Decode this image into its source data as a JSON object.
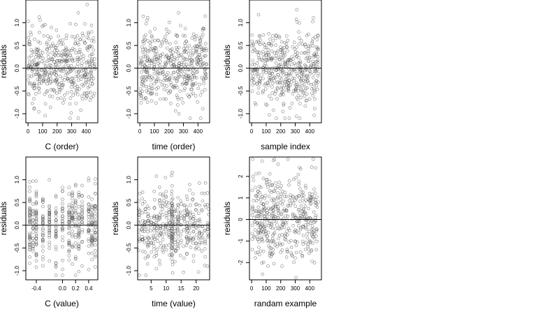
{
  "chart_data": [
    {
      "type": "scatter",
      "xlabel": "C (order)",
      "ylabel": "residuals",
      "xlim": [
        -15,
        480
      ],
      "ylim": [
        -1.2,
        1.5
      ],
      "xticks": [
        0,
        100,
        200,
        300,
        400
      ],
      "xtick_labels": [
        "0",
        "100",
        "200",
        "300",
        "400"
      ],
      "yticks": [
        -1.0,
        -0.5,
        0.0,
        0.5,
        1.0
      ],
      "ytick_labels": [
        "-1.0",
        "-0.5",
        "0.0",
        "0.5",
        "1.0"
      ],
      "hline": 0,
      "seed": 11,
      "n_points": 460,
      "x_distribution": "uniform",
      "x_range": [
        0,
        460
      ],
      "residual_sd": 0.42,
      "residual_clip": [
        -1.1,
        1.4
      ],
      "grid": false,
      "legend": "none"
    },
    {
      "type": "scatter",
      "xlabel": "time (order)",
      "ylabel": "residuals",
      "xlim": [
        -15,
        480
      ],
      "ylim": [
        -1.2,
        1.5
      ],
      "xticks": [
        0,
        100,
        200,
        300,
        400
      ],
      "xtick_labels": [
        "0",
        "100",
        "200",
        "300",
        "400"
      ],
      "yticks": [
        -1.0,
        -0.5,
        0.0,
        0.5,
        1.0
      ],
      "ytick_labels": [
        "-1.0",
        "-0.5",
        "0.0",
        "0.5",
        "1.0"
      ],
      "hline": 0,
      "seed": 23,
      "n_points": 460,
      "x_distribution": "uniform",
      "x_range": [
        0,
        460
      ],
      "residual_sd": 0.42,
      "residual_clip": [
        -1.1,
        1.4
      ],
      "grid": false,
      "legend": "none"
    },
    {
      "type": "scatter",
      "xlabel": "sample index",
      "ylabel": "residuals",
      "xlim": [
        -15,
        480
      ],
      "ylim": [
        -1.2,
        1.5
      ],
      "xticks": [
        0,
        100,
        200,
        300,
        400
      ],
      "xtick_labels": [
        "0",
        "100",
        "200",
        "300",
        "400"
      ],
      "yticks": [
        -1.0,
        -0.5,
        0.0,
        0.5,
        1.0
      ],
      "ytick_labels": [
        "-1.0",
        "-0.5",
        "0.0",
        "0.5",
        "1.0"
      ],
      "hline": 0,
      "seed": 37,
      "n_points": 460,
      "x_distribution": "uniform",
      "x_range": [
        0,
        460
      ],
      "residual_sd": 0.42,
      "residual_clip": [
        -1.1,
        1.4
      ],
      "grid": false,
      "legend": "none"
    },
    {
      "type": "scatter",
      "xlabel": "C (value)",
      "ylabel": "residuals",
      "xlim": [
        -0.56,
        0.54
      ],
      "ylim": [
        -1.2,
        1.5
      ],
      "xticks": [
        -0.4,
        0.0,
        0.2,
        0.4
      ],
      "xtick_labels": [
        "-0.4",
        "0.0",
        "0.2",
        "0.4"
      ],
      "yticks": [
        -1.0,
        -0.5,
        0.0,
        0.5,
        1.0
      ],
      "ytick_labels": [
        "-1.0",
        "-0.5",
        "0.0",
        "0.5",
        "1.0"
      ],
      "hline": 0,
      "seed": 53,
      "n_points": 460,
      "x_distribution": "discrete",
      "x_levels": [
        -0.5,
        -0.45,
        -0.4,
        -0.3,
        -0.2,
        -0.1,
        0.0,
        0.1,
        0.15,
        0.2,
        0.25,
        0.3,
        0.4,
        0.45,
        0.5
      ],
      "residual_sd": 0.42,
      "residual_clip": [
        -1.1,
        1.4
      ],
      "grid": false,
      "legend": "none"
    },
    {
      "type": "scatter",
      "xlabel": "time (value)",
      "ylabel": "residuals",
      "xlim": [
        0.5,
        24.5
      ],
      "ylim": [
        -1.2,
        1.5
      ],
      "xticks": [
        5,
        10,
        15,
        20
      ],
      "xtick_labels": [
        "5",
        "10",
        "15",
        "20"
      ],
      "yticks": [
        -1.0,
        -0.5,
        0.0,
        0.5,
        1.0
      ],
      "ytick_labels": [
        "-1.0",
        "-0.5",
        "0.0",
        "0.5",
        "1.0"
      ],
      "hline": 0,
      "seed": 71,
      "n_points": 460,
      "x_distribution": "discrete_jitter",
      "x_levels": [
        1,
        2,
        3,
        4,
        5,
        6,
        7,
        8,
        9,
        10,
        11,
        12,
        13,
        14,
        15,
        16,
        17,
        18,
        19,
        20,
        21,
        22,
        23,
        24
      ],
      "dense_level": 12,
      "residual_sd": 0.42,
      "residual_clip": [
        -1.1,
        1.4
      ],
      "grid": false,
      "legend": "none"
    },
    {
      "type": "scatter",
      "xlabel": "randam example",
      "ylabel": "residuals",
      "xlim": [
        -15,
        480
      ],
      "ylim": [
        -2.8,
        2.9
      ],
      "xticks": [
        0,
        100,
        200,
        300,
        400
      ],
      "xtick_labels": [
        "0",
        "100",
        "200",
        "300",
        "400"
      ],
      "yticks": [
        -2,
        -1,
        0,
        1,
        2
      ],
      "ytick_labels": [
        "-2",
        "-1",
        "0",
        "1",
        "2"
      ],
      "hline": 0,
      "seed": 97,
      "n_points": 460,
      "x_distribution": "uniform",
      "x_range": [
        0,
        460
      ],
      "residual_sd": 1.0,
      "residual_clip": [
        -2.7,
        2.8
      ],
      "grid": false,
      "legend": "none"
    }
  ]
}
